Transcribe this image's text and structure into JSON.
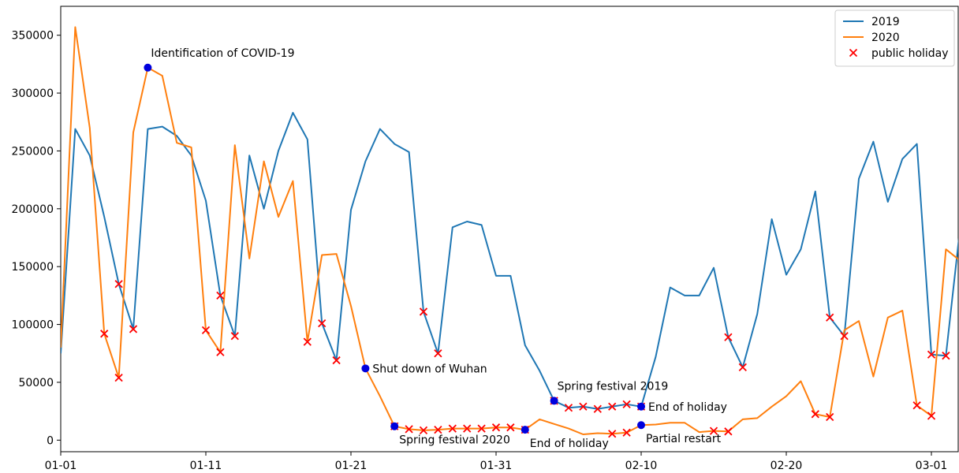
{
  "chart_data": {
    "type": "line",
    "x_tick_labels": [
      "01-01",
      "01-11",
      "01-21",
      "01-31",
      "02-10",
      "02-20",
      "03-01"
    ],
    "ylim": [
      -10000,
      375000
    ],
    "y_ticks": [
      0,
      50000,
      100000,
      150000,
      200000,
      250000,
      300000,
      350000
    ],
    "grid": false,
    "legend_position": "top-right",
    "x": [
      "01-01",
      "01-02",
      "01-03",
      "01-04",
      "01-05",
      "01-06",
      "01-07",
      "01-08",
      "01-09",
      "01-10",
      "01-11",
      "01-12",
      "01-13",
      "01-14",
      "01-15",
      "01-16",
      "01-17",
      "01-18",
      "01-19",
      "01-20",
      "01-21",
      "01-22",
      "01-23",
      "01-24",
      "01-25",
      "01-26",
      "01-27",
      "01-28",
      "01-29",
      "01-30",
      "01-31",
      "02-01",
      "02-02",
      "02-03",
      "02-04",
      "02-05",
      "02-06",
      "02-07",
      "02-08",
      "02-09",
      "02-10",
      "02-11",
      "02-12",
      "02-13",
      "02-14",
      "02-15",
      "02-16",
      "02-17",
      "02-18",
      "02-19",
      "02-20",
      "02-21",
      "02-22",
      "02-23",
      "02-24",
      "02-25",
      "02-26",
      "02-27",
      "02-28",
      "02-29",
      "03-01",
      "03-02",
      "03-03"
    ],
    "series": [
      {
        "name": "2019",
        "color": "#1f77b4",
        "values": [
          75000,
          269000,
          246000,
          193000,
          135000,
          96000,
          269000,
          271000,
          263000,
          246000,
          207000,
          125000,
          90000,
          246000,
          200000,
          250000,
          283000,
          260000,
          101000,
          69000,
          199000,
          241000,
          269000,
          256000,
          249000,
          111000,
          75000,
          184000,
          189000,
          186000,
          142000,
          142000,
          82000,
          60000,
          34000,
          28000,
          29000,
          27000,
          29000,
          31000,
          29000,
          72000,
          132000,
          125000,
          125000,
          149000,
          89000,
          63000,
          109000,
          191000,
          143000,
          165000,
          215000,
          106000,
          90000,
          226000,
          258000,
          206000,
          243000,
          256000,
          74000,
          73000,
          186000
        ]
      },
      {
        "name": "2020",
        "color": "#ff7f0e",
        "values": [
          80000,
          357000,
          270000,
          92000,
          54000,
          266000,
          322000,
          315000,
          257000,
          253000,
          95000,
          76000,
          255000,
          157000,
          241000,
          193000,
          224000,
          85000,
          160000,
          161000,
          116000,
          62000,
          38000,
          12000,
          9500,
          8500,
          9000,
          10000,
          10000,
          10000,
          11000,
          11000,
          9000,
          18000,
          14000,
          10000,
          5000,
          6000,
          5500,
          6500,
          13000,
          13500,
          15000,
          15000,
          7000,
          8000,
          7500,
          18000,
          19000,
          29000,
          38000,
          51000,
          22500,
          20000,
          95000,
          103000,
          55000,
          106000,
          112000,
          30000,
          21000,
          165000,
          155000
        ]
      }
    ],
    "public_holiday": {
      "name": "public holiday",
      "color": "#ff0000",
      "points": [
        {
          "x": "01-04",
          "y": 92000
        },
        {
          "x": "01-05",
          "y": 54000
        },
        {
          "x": "01-05",
          "y": 135000
        },
        {
          "x": "01-06",
          "y": 96000
        },
        {
          "x": "01-11",
          "y": 95000
        },
        {
          "x": "01-12",
          "y": 76000
        },
        {
          "x": "01-12",
          "y": 125000
        },
        {
          "x": "01-13",
          "y": 90000
        },
        {
          "x": "01-18",
          "y": 85000
        },
        {
          "x": "01-19",
          "y": 101000
        },
        {
          "x": "01-20",
          "y": 69000
        },
        {
          "x": "01-26",
          "y": 111000
        },
        {
          "x": "01-27",
          "y": 75000
        },
        {
          "x": "01-24",
          "y": 12000
        },
        {
          "x": "01-25",
          "y": 9500
        },
        {
          "x": "01-26",
          "y": 8500
        },
        {
          "x": "01-27",
          "y": 9000
        },
        {
          "x": "01-28",
          "y": 10000
        },
        {
          "x": "01-29",
          "y": 10000
        },
        {
          "x": "01-30",
          "y": 10000
        },
        {
          "x": "01-31",
          "y": 11000
        },
        {
          "x": "02-01",
          "y": 11000
        },
        {
          "x": "02-02",
          "y": 9000
        },
        {
          "x": "02-04",
          "y": 34000
        },
        {
          "x": "02-05",
          "y": 28000
        },
        {
          "x": "02-06",
          "y": 29000
        },
        {
          "x": "02-07",
          "y": 27000
        },
        {
          "x": "02-08",
          "y": 29000
        },
        {
          "x": "02-09",
          "y": 31000
        },
        {
          "x": "02-10",
          "y": 29000
        },
        {
          "x": "02-08",
          "y": 5500
        },
        {
          "x": "02-09",
          "y": 6500
        },
        {
          "x": "02-15",
          "y": 8000
        },
        {
          "x": "02-16",
          "y": 7500
        },
        {
          "x": "02-16",
          "y": 89000
        },
        {
          "x": "02-17",
          "y": 63000
        },
        {
          "x": "02-22",
          "y": 22500
        },
        {
          "x": "02-23",
          "y": 20000
        },
        {
          "x": "02-23",
          "y": 106000
        },
        {
          "x": "02-24",
          "y": 90000
        },
        {
          "x": "02-29",
          "y": 30000
        },
        {
          "x": "03-01",
          "y": 21000
        },
        {
          "x": "03-01",
          "y": 74000
        },
        {
          "x": "03-02",
          "y": 73000
        }
      ]
    },
    "events": [
      {
        "x": "01-07",
        "y": 322000,
        "label": "Identification of COVID-19",
        "anchor": "above-right"
      },
      {
        "x": "01-22",
        "y": 62000,
        "label": "Shut down of Wuhan",
        "anchor": "right"
      },
      {
        "x": "01-24",
        "y": 12000,
        "label": "Spring festival 2020",
        "anchor": "below-right"
      },
      {
        "x": "02-02",
        "y": 9000,
        "label": "End of holiday",
        "anchor": "below-right"
      },
      {
        "x": "02-04",
        "y": 34000,
        "label": "Spring festival 2019",
        "anchor": "above-right"
      },
      {
        "x": "02-10",
        "y": 29000,
        "label": "End of holiday",
        "anchor": "right"
      },
      {
        "x": "02-10",
        "y": 13000,
        "label": "Partial restart",
        "anchor": "below-right"
      }
    ],
    "event_marker_color": "#0000dd"
  }
}
